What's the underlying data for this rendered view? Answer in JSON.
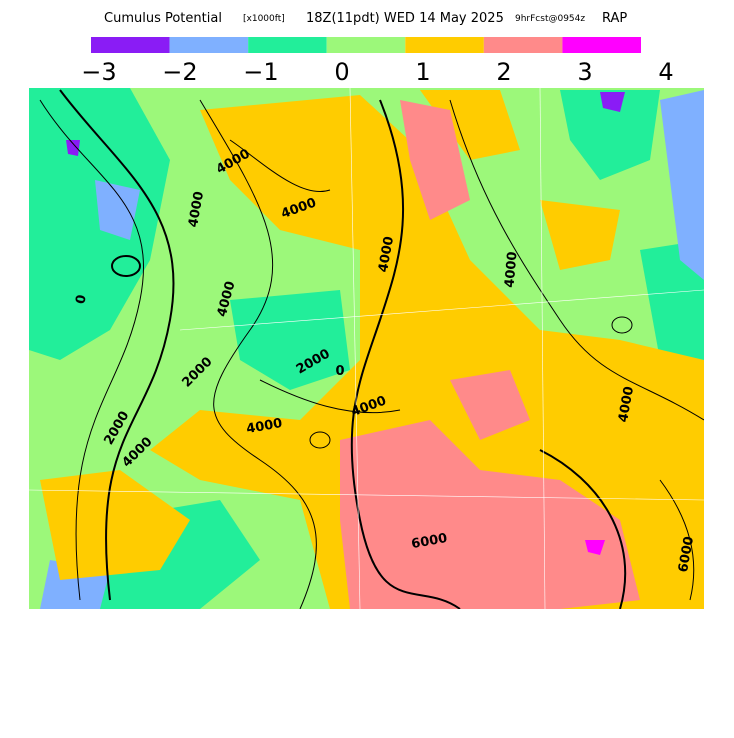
{
  "header": {
    "title": "Cumulus Potential",
    "units": "[x1000ft]",
    "valid": "18Z(11pdt) WED 14 May 2025",
    "forecast": "9hrFcst@0954z",
    "model": "RAP"
  },
  "colorbar": {
    "colors": [
      "#8a1cf5",
      "#7fb0ff",
      "#22ee9a",
      "#9cf87a",
      "#ffcc00",
      "#ff8a8a",
      "#ff00ff"
    ],
    "labels": [
      "−3",
      "−2",
      "−1",
      "0",
      "1",
      "2",
      "3",
      "4"
    ]
  },
  "map": {
    "contour_labels": [
      "4000",
      "4000",
      "4000",
      "4000",
      "4000",
      "4000",
      "4000",
      "2000",
      "2000",
      "2000",
      "4000",
      "4000",
      "6000",
      "6000",
      "4000",
      "0",
      "0"
    ]
  }
}
